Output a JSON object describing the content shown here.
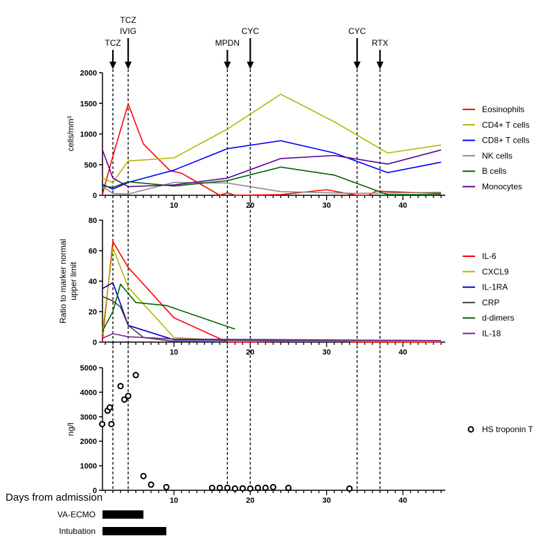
{
  "chart_data": [
    {
      "type": "line",
      "ylabel": "cells/mm³",
      "ylim": [
        0,
        2000
      ],
      "yticks": [
        0,
        500,
        1000,
        1500,
        2000
      ],
      "xlim": [
        0.6,
        45.5
      ],
      "xticks": [
        10,
        20,
        30,
        40
      ],
      "legend_position": "right",
      "series": [
        {
          "name": "Eosinophils",
          "color": "#ff0000",
          "x": [
            0.6,
            2,
            4,
            6,
            9.5,
            11,
            16,
            17,
            18,
            24,
            30,
            34,
            35.5,
            36.5,
            38,
            45
          ],
          "y": [
            0,
            640,
            1490,
            835,
            400,
            360,
            0,
            40,
            0,
            10,
            90,
            0,
            0,
            70,
            60,
            30
          ]
        },
        {
          "name": "CD4+ T cells",
          "color": "#b5b500",
          "x": [
            0.6,
            2,
            4,
            10,
            17,
            24,
            31,
            38,
            45
          ],
          "y": [
            280,
            210,
            560,
            610,
            1080,
            1650,
            1200,
            690,
            820
          ]
        },
        {
          "name": "CD8+ T cells",
          "color": "#0000ff",
          "x": [
            0.6,
            2,
            4,
            10,
            17,
            24,
            31,
            38,
            45
          ],
          "y": [
            180,
            100,
            210,
            410,
            760,
            890,
            690,
            370,
            540
          ]
        },
        {
          "name": "NK cells",
          "color": "#8c8c8c",
          "x": [
            0.6,
            2,
            4,
            10,
            17,
            24,
            34,
            45
          ],
          "y": [
            150,
            30,
            20,
            210,
            200,
            60,
            30,
            50
          ]
        },
        {
          "name": "B cells",
          "color": "#006400",
          "x": [
            0.6,
            2,
            4,
            10,
            17,
            24,
            31,
            38,
            45
          ],
          "y": [
            150,
            130,
            220,
            150,
            240,
            460,
            330,
            10,
            10
          ]
        },
        {
          "name": "Monocytes",
          "color": "#5a0090",
          "x": [
            0.6,
            2,
            4,
            10,
            17,
            24,
            31,
            38,
            45
          ],
          "y": [
            750,
            280,
            140,
            170,
            280,
            600,
            650,
            510,
            740
          ]
        }
      ]
    },
    {
      "type": "line",
      "ylabel": "Ratio to marker normal upper limit",
      "ylim": [
        0,
        80
      ],
      "yticks": [
        0,
        20,
        40,
        60,
        80
      ],
      "xlim": [
        0.6,
        45.5
      ],
      "xticks": [
        10,
        20,
        30,
        40
      ],
      "legend_position": "right",
      "series": [
        {
          "name": "IL-6",
          "color": "#ff0000",
          "x": [
            0.6,
            2,
            4,
            10,
            17,
            20,
            30,
            34,
            45
          ],
          "y": [
            0,
            66,
            49,
            16,
            0,
            0,
            1.5,
            0,
            0
          ]
        },
        {
          "name": "CXCL9",
          "color": "#b5b500",
          "x": [
            0.6,
            2,
            4,
            10,
            17,
            45
          ],
          "y": [
            5,
            62,
            36,
            3,
            1,
            0.5
          ]
        },
        {
          "name": "IL-1RA",
          "color": "#0000c8",
          "x": [
            0.6,
            2,
            4,
            10,
            45
          ],
          "y": [
            35,
            39,
            11,
            1.5,
            1
          ]
        },
        {
          "name": "CRP",
          "color": "#404040",
          "x": [
            0.6,
            2,
            3,
            4,
            6,
            10,
            17
          ],
          "y": [
            30,
            27,
            23,
            11,
            3,
            0.5,
            0.3
          ]
        },
        {
          "name": "d-dimers",
          "color": "#006400",
          "x": [
            0.6,
            2,
            3,
            4,
            5,
            9,
            18
          ],
          "y": [
            7,
            20,
            38,
            32,
            26,
            24,
            8.5
          ]
        },
        {
          "name": "IL-18",
          "color": "#7a1fa0",
          "x": [
            0.6,
            2,
            4,
            10,
            45
          ],
          "y": [
            2.5,
            5.5,
            3.5,
            2,
            1
          ]
        }
      ]
    },
    {
      "type": "scatter",
      "ylabel": "ng/l",
      "xlabel": "Days from admission",
      "ylim": [
        0,
        5000
      ],
      "yticks": [
        0,
        1000,
        2000,
        3000,
        4000,
        5000
      ],
      "xlim": [
        0.6,
        45.5
      ],
      "xticks": [
        10,
        20,
        30,
        40
      ],
      "legend_position": "right",
      "series": [
        {
          "name": "HS troponin T",
          "color": "#000000",
          "x": [
            0.6,
            1.3,
            1.6,
            1.8,
            3,
            3.5,
            4,
            5,
            6,
            7,
            9,
            15,
            16,
            17,
            18,
            19,
            20,
            21,
            22,
            23,
            25,
            33
          ],
          "y": [
            2700,
            3250,
            3380,
            2700,
            4250,
            3700,
            3850,
            4700,
            580,
            230,
            130,
            100,
            100,
            100,
            70,
            80,
            70,
            100,
            100,
            130,
            100,
            70
          ]
        }
      ]
    }
  ],
  "treatments": [
    {
      "day": 2,
      "label": [
        "TCZ"
      ]
    },
    {
      "day": 4,
      "label": [
        "TCZ",
        "IVIG"
      ]
    },
    {
      "day": 17,
      "label": [
        "MPDN"
      ]
    },
    {
      "day": 20,
      "label": [
        "CYC"
      ]
    },
    {
      "day": 34,
      "label": [
        "CYC"
      ]
    },
    {
      "day": 37,
      "label": [
        "RTX"
      ]
    }
  ],
  "support": [
    {
      "label": "VA-ECMO",
      "start": 0.6,
      "end": 6
    },
    {
      "label": "Intubation",
      "start": 0.6,
      "end": 9
    }
  ]
}
